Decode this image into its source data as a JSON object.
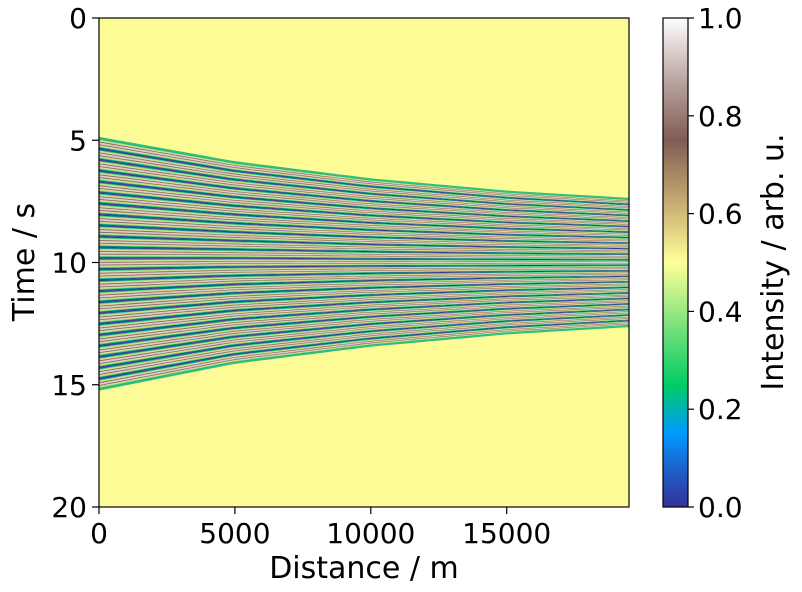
{
  "chart_data": {
    "type": "heatmap",
    "xlabel": "Distance / m",
    "ylabel": "Time / s",
    "xlim": [
      0,
      19500
    ],
    "ylim": [
      20,
      0
    ],
    "x_ticks": [
      "0",
      "5000",
      "10000",
      "15000"
    ],
    "x_tick_values": [
      0,
      5000,
      10000,
      15000
    ],
    "y_ticks": [
      "0",
      "5",
      "10",
      "15",
      "20"
    ],
    "y_tick_values": [
      0,
      5,
      10,
      15,
      20
    ],
    "background_intensity": 0.5,
    "fringe_band": {
      "center_time_s": 10.0,
      "top_edge_time_s": {
        "x": [
          0,
          5000,
          10000,
          15000,
          19500
        ],
        "t": [
          4.9,
          5.9,
          6.6,
          7.1,
          7.4
        ]
      },
      "bottom_edge_time_s": {
        "x": [
          0,
          5000,
          10000,
          15000,
          19500
        ],
        "t": [
          15.2,
          14.1,
          13.4,
          12.9,
          12.6
        ]
      },
      "fringe_count": 23,
      "intensity_range": [
        0.0,
        1.0
      ]
    },
    "colorbar": {
      "label": "Intensity / arb. u.",
      "colormap": "terrain",
      "range": [
        0.0,
        1.0
      ],
      "ticks": [
        "0.0",
        "0.2",
        "0.4",
        "0.6",
        "0.8",
        "1.0"
      ],
      "tick_values": [
        0.0,
        0.2,
        0.4,
        0.6,
        0.8,
        1.0
      ]
    }
  }
}
